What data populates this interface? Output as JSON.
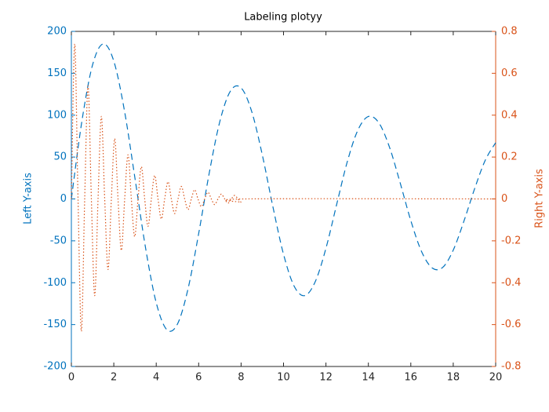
{
  "chart_data": {
    "type": "line",
    "title": "Labeling plotyy",
    "y_label": "Left Y-axis",
    "y2_label": "Right Y-axis",
    "xlim": [
      0,
      20
    ],
    "xticks": [
      0,
      2,
      4,
      6,
      8,
      10,
      12,
      14,
      16,
      18,
      20
    ],
    "ylim": [
      -200,
      200
    ],
    "yticks": [
      -200,
      -150,
      -100,
      -50,
      0,
      50,
      100,
      150,
      200
    ],
    "y2lim": [
      -0.8,
      0.8
    ],
    "y2ticks": [
      -0.8,
      -0.6,
      -0.4,
      -0.2,
      0,
      0.2,
      0.4,
      0.6,
      0.8
    ],
    "series": [
      {
        "color": "#0072bd",
        "line_style": "dashed",
        "axis": "y",
        "x": [
          0,
          0.5,
          1,
          1.5,
          2,
          2.5,
          3,
          3.5,
          4,
          4.5,
          5,
          5.5,
          6,
          6.5,
          7,
          7.5,
          8,
          8.5,
          9,
          9.5,
          10,
          10.5,
          11,
          11.5,
          12,
          12.5,
          13,
          13.5,
          14,
          14.5,
          15,
          15.5,
          16,
          16.5,
          17,
          17.5,
          18,
          18.5,
          19,
          19.5,
          20
        ],
        "values": [
          0,
          93.5,
          160.1,
          185.1,
          164.5,
          105.6,
          24.3,
          -58.9,
          -123.9,
          -156.1,
          -149.4,
          -107.2,
          -41.4,
          31.1,
          92.6,
          128.9,
          132.6,
          104.4,
          52.6,
          -9.4,
          -66.0,
          -104.1,
          -115.4,
          -98.5,
          -58.9,
          -7.1,
          43.9,
          81.9,
          98.4,
          90.6,
          61.4,
          19.0,
          -25.9,
          -62.4,
          -82.2,
          -81.8,
          -61.1,
          -26.8,
          11.6,
          45.7,
          67.2
        ]
      },
      {
        "color": "#d95319",
        "line_style": "dotted",
        "axis": "y2",
        "x": [
          0,
          0.157,
          0.314,
          0.471,
          0.628,
          0.785,
          0.942,
          1.1,
          1.257,
          1.414,
          1.571,
          1.728,
          1.885,
          2.042,
          2.199,
          2.356,
          2.513,
          2.67,
          2.827,
          2.985,
          3.142,
          3.299,
          3.456,
          3.613,
          3.77,
          3.927,
          4.084,
          4.241,
          4.398,
          4.555,
          4.712,
          4.869,
          5.027,
          5.184,
          5.341,
          5.498,
          5.655,
          5.812,
          5.969,
          6.126,
          6.283,
          6.44,
          6.597,
          6.754,
          6.912,
          7.069,
          7.226,
          7.383,
          7.54,
          7.697,
          7.854,
          8.011,
          8.168,
          20
        ],
        "values": [
          0,
          0.74,
          0,
          -0.632,
          0,
          0.54,
          0,
          -0.462,
          0,
          0.394,
          0,
          -0.337,
          0,
          0.288,
          0,
          -0.246,
          0,
          0.211,
          0,
          -0.18,
          0,
          0.154,
          0,
          -0.131,
          0,
          0.112,
          0,
          -0.096,
          0,
          0.082,
          0,
          -0.07,
          0,
          0.06,
          0,
          -0.051,
          0,
          0.044,
          0,
          -0.037,
          0,
          0.032,
          0,
          -0.027,
          0,
          0.023,
          0,
          -0.02,
          0,
          0.017,
          0,
          -0.015,
          0,
          0
        ]
      }
    ]
  }
}
